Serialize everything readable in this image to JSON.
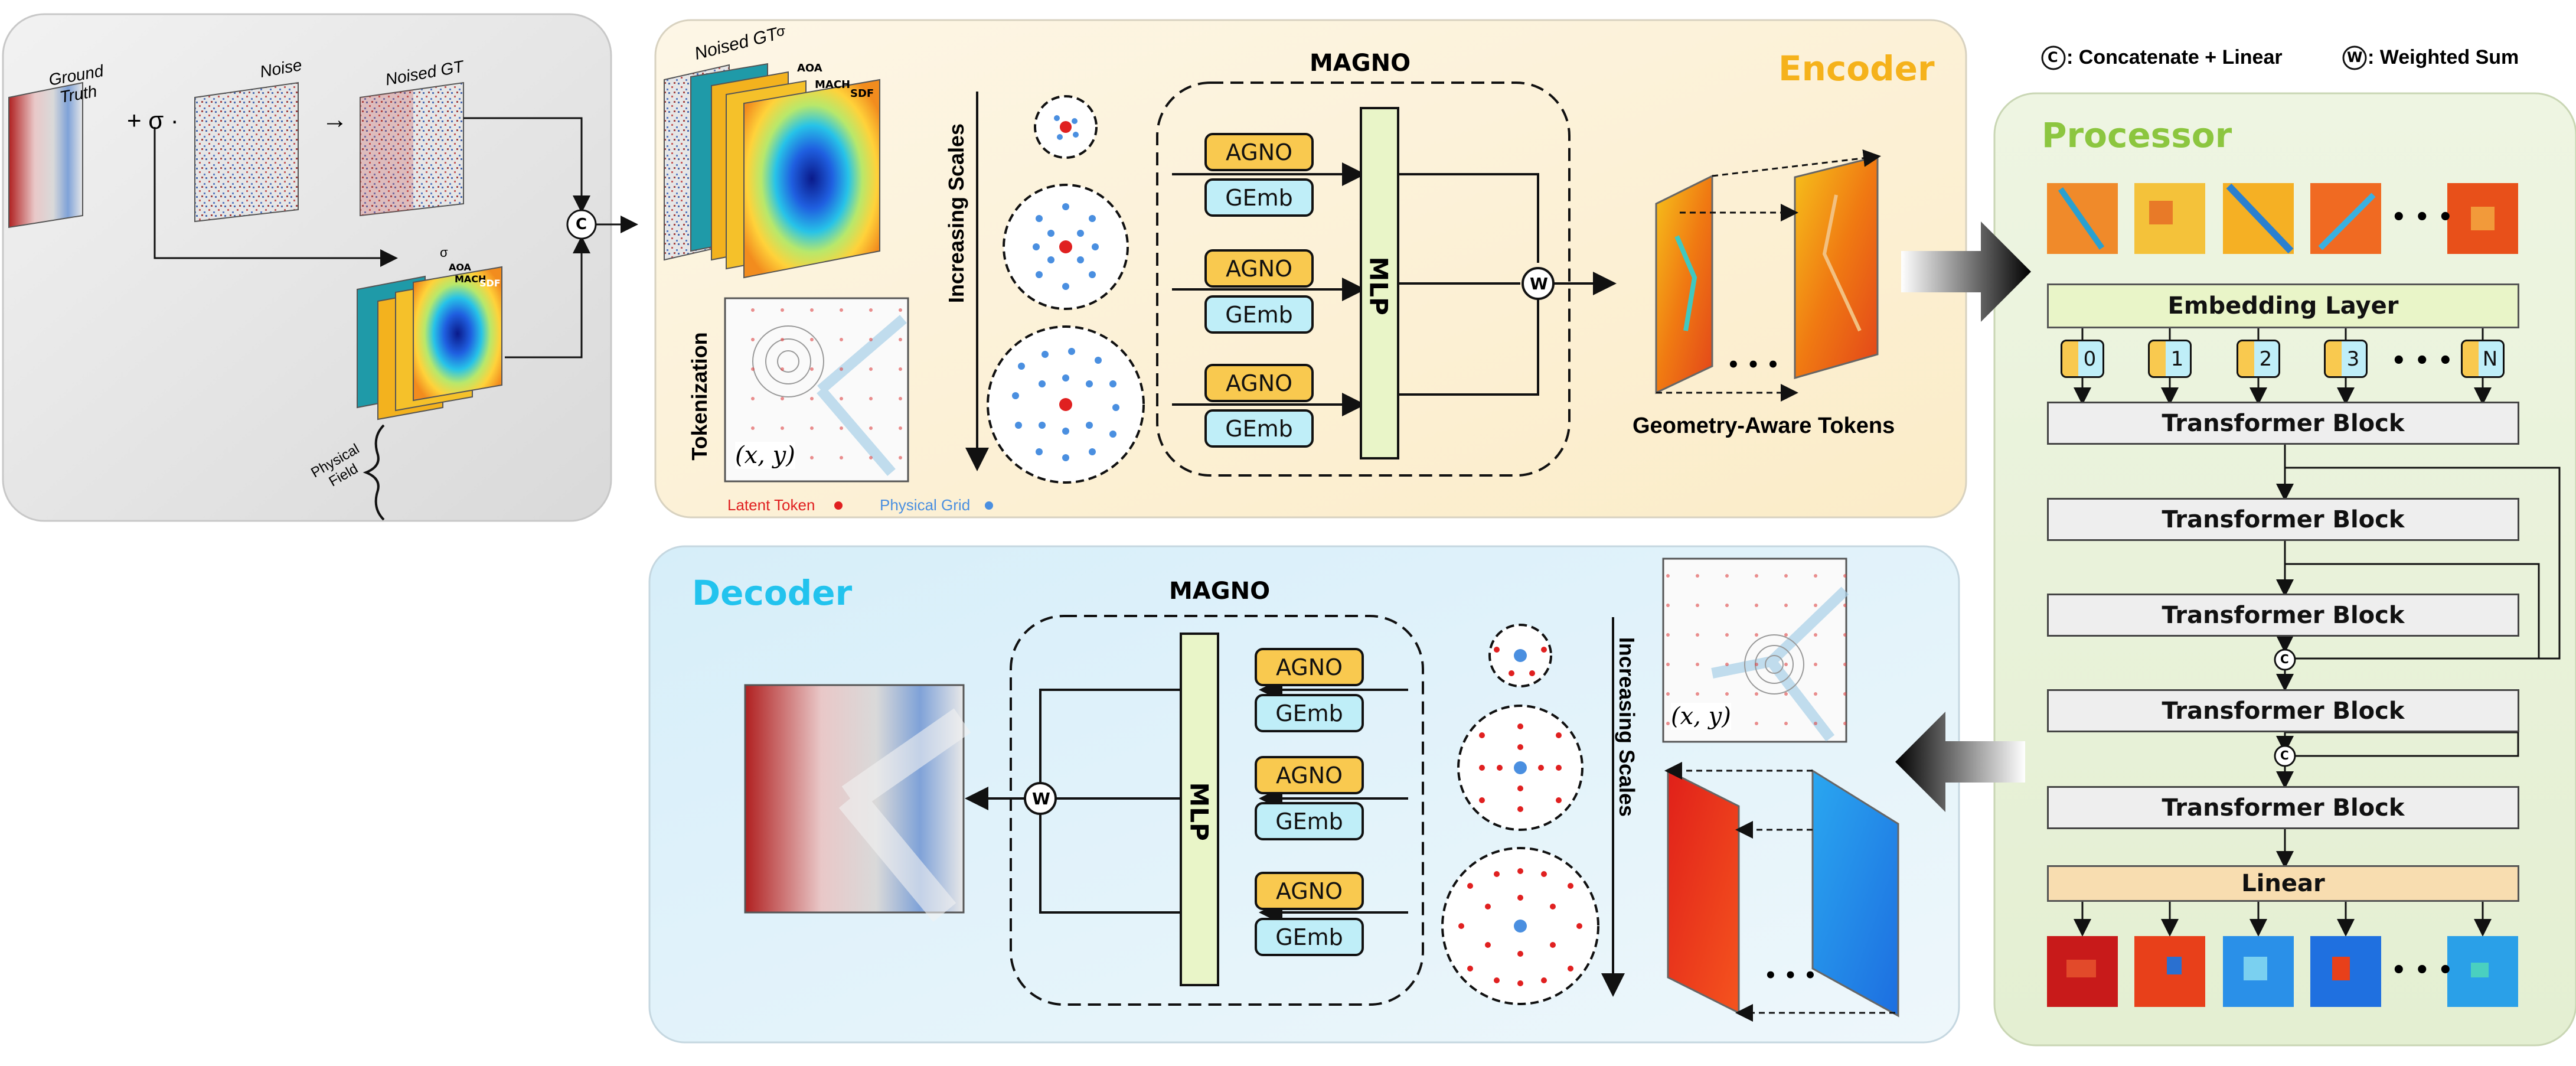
{
  "input_panel": {
    "ground_truth": "Ground Truth",
    "plus_sigma": "+ σ ·",
    "noise": "Noise",
    "arrow": "→",
    "noised_gt": "Noised GT",
    "physical_field": "Physical Field",
    "concat_symbol": "C",
    "field_layers": [
      "σ",
      "AOA",
      "MACH",
      "SDF"
    ]
  },
  "encoder": {
    "title": "Encoder",
    "magno": "MAGNO",
    "increasing_scales": "Increasing Scales",
    "tokenization": "Tokenization",
    "xy": "(x, y)",
    "latent_token": "Latent Token",
    "physical_grid": "Physical Grid",
    "agno": "AGNO",
    "gemb": "GEmb",
    "mlp": "MLP",
    "weighted_symbol": "W",
    "geometry_tokens": "Geometry-Aware Tokens",
    "dots": "• • •",
    "stack_labels": [
      "Noised GT",
      "σ",
      "AOA",
      "MACH",
      "SDF"
    ]
  },
  "legend": {
    "concat_symbol": "C",
    "concat_text": ": Concatenate + Linear",
    "weighted_symbol": "W",
    "weighted_text": ": Weighted Sum"
  },
  "processor": {
    "title": "Processor",
    "embedding_layer": "Embedding Layer",
    "tokens": [
      "0",
      "1",
      "2",
      "3",
      "N"
    ],
    "dots": "• • •",
    "transformer_block": "Transformer Block",
    "linear": "Linear",
    "concat_symbol": "C"
  },
  "decoder": {
    "title": "Decoder",
    "magno": "MAGNO",
    "increasing_scales": "Increasing Scales",
    "xy": "(x, y)",
    "agno": "AGNO",
    "gemb": "GEmb",
    "mlp": "MLP",
    "weighted_symbol": "W",
    "dots": "• • •"
  },
  "colors": {
    "encoder_title": "#f5b21b",
    "processor_title": "#8cc63f",
    "decoder_title": "#22c3ee",
    "agno_fill": "#f9c94f",
    "gemb_fill": "#bfeef8",
    "mlp_fill": "#e9f5c8",
    "latent_token": "#e02020",
    "physical_grid": "#4a8fe0"
  }
}
